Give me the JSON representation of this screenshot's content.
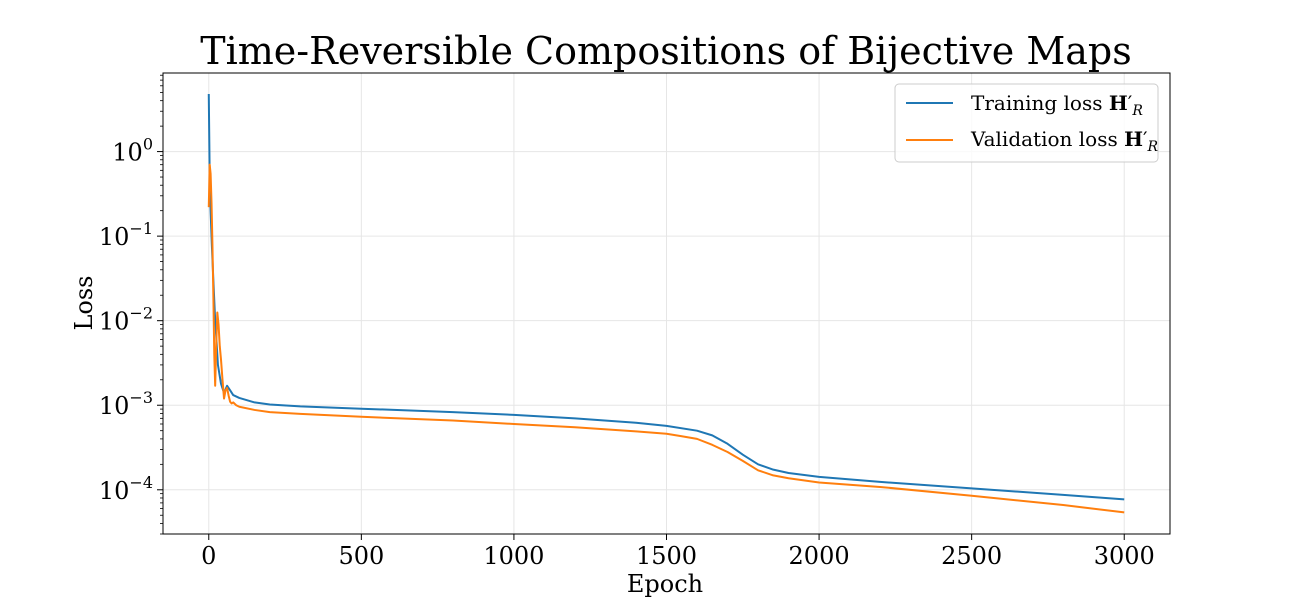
{
  "chart_data": {
    "type": "line",
    "title": "Time-Reversible Compositions of Bijective Maps",
    "xlabel": "Epoch",
    "ylabel": "Loss",
    "xlim": [
      -150,
      3150
    ],
    "ylim": [
      3e-05,
      8.5
    ],
    "yscale": "log",
    "grid": true,
    "legend_position": "top-right",
    "x_ticks": [
      0,
      500,
      1000,
      1500,
      2000,
      2500,
      3000
    ],
    "x_tick_labels": [
      "0",
      "500",
      "1000",
      "1500",
      "2000",
      "2500",
      "3000"
    ],
    "y_ticks": [
      1,
      0.1,
      0.01,
      0.001,
      0.0001
    ],
    "y_tick_labels": [
      {
        "base": "10",
        "exp": "0"
      },
      {
        "base": "10",
        "exp": "−1"
      },
      {
        "base": "10",
        "exp": "−2"
      },
      {
        "base": "10",
        "exp": "−3"
      },
      {
        "base": "10",
        "exp": "−4"
      }
    ],
    "series": [
      {
        "name": "Training loss H′_R",
        "legend_prefix": "Training loss ",
        "legend_math": "H",
        "legend_prime": "′",
        "legend_sub": "R",
        "color": "#1f77b4",
        "x": [
          0,
          3,
          6,
          10,
          15,
          20,
          25,
          30,
          40,
          50,
          60,
          70,
          80,
          100,
          150,
          200,
          300,
          500,
          800,
          1000,
          1200,
          1400,
          1500,
          1600,
          1650,
          1700,
          1750,
          1800,
          1850,
          1900,
          2000,
          2200,
          2500,
          2800,
          3000
        ],
        "y": [
          4.8,
          0.5,
          0.2,
          0.08,
          0.03,
          0.012,
          0.006,
          0.003,
          0.0018,
          0.0014,
          0.0017,
          0.0015,
          0.00132,
          0.00122,
          0.00108,
          0.00102,
          0.00097,
          0.00091,
          0.00083,
          0.00077,
          0.0007,
          0.00062,
          0.00057,
          0.0005,
          0.00044,
          0.00035,
          0.00026,
          0.0002,
          0.000173,
          0.000158,
          0.000142,
          0.000124,
          0.000104,
          8.7e-05,
          7.7e-05
        ]
      },
      {
        "name": "Validation loss H′_R",
        "legend_prefix": "Validation loss ",
        "legend_math": "H",
        "legend_prime": "′",
        "legend_sub": "R",
        "color": "#ff7f0e",
        "x": [
          0,
          3,
          6,
          9,
          12,
          15,
          18,
          21,
          25,
          28,
          32,
          36,
          40,
          45,
          50,
          55,
          60,
          65,
          70,
          75,
          80,
          90,
          100,
          150,
          200,
          300,
          500,
          800,
          1000,
          1200,
          1400,
          1500,
          1550,
          1600,
          1650,
          1700,
          1750,
          1800,
          1850,
          1900,
          2000,
          2200,
          2500,
          2800,
          3000
        ],
        "y": [
          0.22,
          0.7,
          0.55,
          0.25,
          0.08,
          0.02,
          0.004,
          0.0017,
          0.006,
          0.0125,
          0.009,
          0.005,
          0.0035,
          0.002,
          0.0012,
          0.0015,
          0.0016,
          0.0013,
          0.0011,
          0.00105,
          0.00108,
          0.001,
          0.00096,
          0.00088,
          0.00083,
          0.00079,
          0.00073,
          0.00066,
          0.0006,
          0.00055,
          0.00049,
          0.00046,
          0.00043,
          0.0004,
          0.00034,
          0.00028,
          0.00022,
          0.00017,
          0.000148,
          0.000137,
          0.000122,
          0.000108,
          8.5e-05,
          6.6e-05,
          5.4e-05
        ]
      }
    ]
  }
}
